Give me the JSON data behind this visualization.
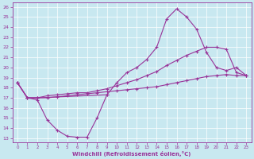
{
  "xlabel": "Windchill (Refroidissement éolien,°C)",
  "bg_color": "#c8e8f0",
  "line_color": "#993399",
  "xlim_min": -0.5,
  "xlim_max": 23.5,
  "ylim_min": 12.6,
  "ylim_max": 26.4,
  "xticks": [
    0,
    1,
    2,
    3,
    4,
    5,
    6,
    7,
    8,
    9,
    10,
    11,
    12,
    13,
    14,
    15,
    16,
    17,
    18,
    19,
    20,
    21,
    22,
    23
  ],
  "yticks": [
    13,
    14,
    15,
    16,
    17,
    18,
    19,
    20,
    21,
    22,
    23,
    24,
    25,
    26
  ],
  "line_bottom_x": [
    0,
    1,
    2,
    3,
    4,
    5,
    6,
    7,
    8,
    9
  ],
  "line_bottom_y": [
    18.5,
    17.0,
    16.8,
    14.8,
    13.8,
    13.2,
    13.1,
    13.1,
    15.0,
    17.3
  ],
  "line_top_x": [
    0,
    1,
    2,
    9,
    10,
    11,
    12,
    13,
    14,
    15,
    16,
    17,
    18,
    19,
    20,
    21,
    22,
    23
  ],
  "line_top_y": [
    18.5,
    17.0,
    17.0,
    17.3,
    18.5,
    19.5,
    20.0,
    20.8,
    22.0,
    24.8,
    25.8,
    25.0,
    23.8,
    21.5,
    20.0,
    19.7,
    20.0,
    19.2
  ],
  "line_mid_x": [
    0,
    1,
    2,
    3,
    4,
    5,
    6,
    7,
    8,
    9,
    10,
    11,
    12,
    13,
    14,
    15,
    16,
    17,
    18,
    19,
    20,
    21,
    22,
    23
  ],
  "line_mid_y": [
    18.5,
    17.0,
    17.0,
    17.2,
    17.3,
    17.4,
    17.5,
    17.5,
    17.7,
    17.9,
    18.2,
    18.5,
    18.8,
    19.2,
    19.6,
    20.2,
    20.7,
    21.2,
    21.6,
    22.0,
    22.0,
    21.8,
    19.5,
    19.2
  ],
  "line_diag_x": [
    0,
    1,
    2,
    3,
    4,
    5,
    6,
    7,
    8,
    9,
    10,
    11,
    12,
    13,
    14,
    15,
    16,
    17,
    18,
    19,
    20,
    21,
    22,
    23
  ],
  "line_diag_y": [
    18.5,
    17.0,
    17.0,
    17.0,
    17.1,
    17.2,
    17.3,
    17.4,
    17.5,
    17.6,
    17.7,
    17.8,
    17.9,
    18.0,
    18.1,
    18.3,
    18.5,
    18.7,
    18.9,
    19.1,
    19.2,
    19.3,
    19.2,
    19.2
  ]
}
